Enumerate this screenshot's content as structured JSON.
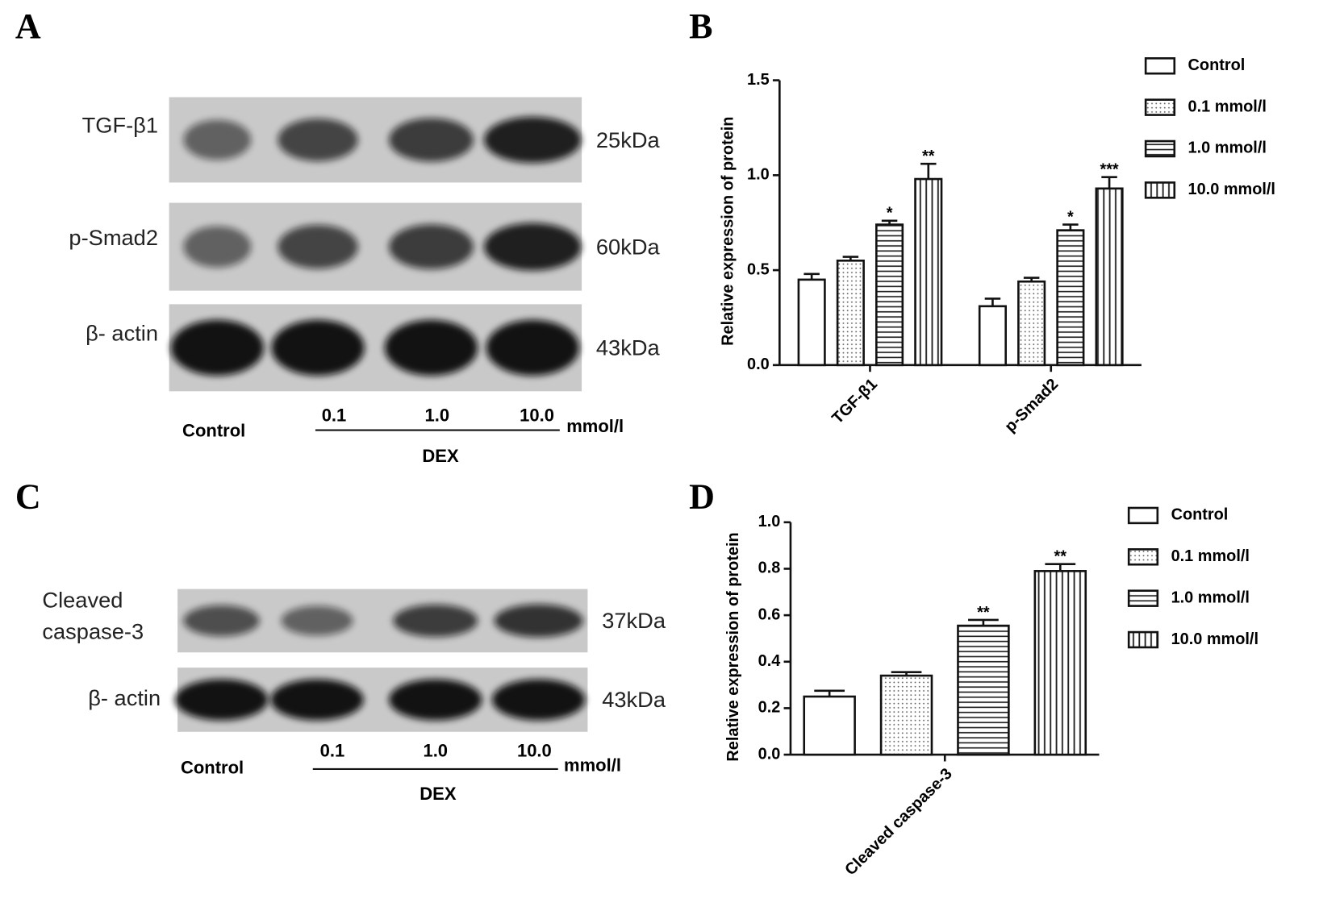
{
  "panels": [
    "A",
    "B",
    "C",
    "D"
  ],
  "blots": [
    {
      "rows": [
        {
          "label": "TGF-β1",
          "size": "25kDa"
        },
        {
          "label": "p-Smad2",
          "size": "60kDa"
        },
        {
          "label": "β- actin",
          "size": "43kDa"
        }
      ],
      "control": "Control",
      "doses": [
        "0.1",
        "1.0",
        "10.0"
      ],
      "unit": "mmol/l",
      "group": "DEX"
    },
    {
      "rows": [
        {
          "label": "Cleaved caspase-3",
          "size": "37kDa"
        },
        {
          "label": "β- actin",
          "size": "43kDa"
        }
      ],
      "control": "Control",
      "doses": [
        "0.1",
        "1.0",
        "10.0"
      ],
      "unit": "mmol/l",
      "group": "DEX"
    }
  ],
  "chart_data": [
    {
      "type": "bar",
      "ylabel": "Relative expression of protein",
      "categories": [
        "TGF-β1",
        "p-Smad2"
      ],
      "series": [
        {
          "name": "Control",
          "color": "#ffffff",
          "pattern": "none",
          "values": [
            0.45,
            0.31
          ],
          "errors": [
            0.03,
            0.04
          ],
          "significance": [
            null,
            null
          ]
        },
        {
          "name": "0.1 mmol/l",
          "color": "#ffffff",
          "pattern": "dots",
          "values": [
            0.55,
            0.44
          ],
          "errors": [
            0.02,
            0.02
          ],
          "significance": [
            null,
            null
          ]
        },
        {
          "name": "1.0 mmol/l",
          "color": "#ffffff",
          "pattern": "horizontal",
          "values": [
            0.74,
            0.71
          ],
          "errors": [
            0.02,
            0.03
          ],
          "significance": [
            "*",
            "*"
          ]
        },
        {
          "name": "10.0 mmol/l",
          "color": "#ffffff",
          "pattern": "vertical",
          "values": [
            0.98,
            0.93
          ],
          "errors": [
            0.08,
            0.06
          ],
          "significance": [
            "**",
            "***"
          ]
        }
      ],
      "ylim": [
        0,
        1.5
      ],
      "yticks": [
        {
          "value": 0,
          "label": "0.0"
        },
        0.5,
        {
          "value": 1,
          "label": "1.0"
        },
        1.5
      ],
      "legend": "right"
    },
    {
      "type": "bar",
      "ylabel": "Relative expression of protein",
      "categories": [
        "Cleaved caspase-3"
      ],
      "series": [
        {
          "name": "Control",
          "color": "#ffffff",
          "pattern": "none",
          "values": [
            0.25
          ],
          "errors": [
            0.025
          ],
          "significance": [
            null
          ]
        },
        {
          "name": "0.1 mmol/l",
          "color": "#ffffff",
          "pattern": "dots",
          "values": [
            0.34
          ],
          "errors": [
            0.015
          ],
          "significance": [
            null
          ]
        },
        {
          "name": "1.0 mmol/l",
          "color": "#ffffff",
          "pattern": "horizontal",
          "values": [
            0.555
          ],
          "errors": [
            0.025
          ],
          "significance": [
            "**"
          ]
        },
        {
          "name": "10.0 mmol/l",
          "color": "#ffffff",
          "pattern": "vertical",
          "values": [
            0.79
          ],
          "errors": [
            0.03
          ],
          "significance": [
            "**"
          ]
        }
      ],
      "ylim": [
        0,
        1.0
      ],
      "yticks": [
        {
          "value": 0,
          "label": "0.0"
        },
        0.2,
        0.4,
        0.6,
        0.8,
        {
          "value": 1,
          "label": "1.0"
        }
      ],
      "legend": "right"
    }
  ]
}
